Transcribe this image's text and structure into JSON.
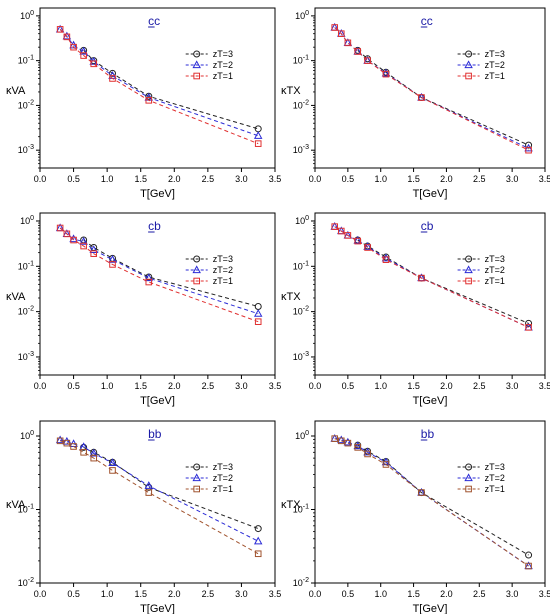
{
  "chart_data": [
    {
      "type": "line",
      "title": "cc",
      "xlabel": "T[GeV]",
      "ylabel": "κVA",
      "xlim": [
        0.0,
        3.5
      ],
      "ylim": [
        0.0004,
        1.5
      ],
      "yscale": "log",
      "xticks": [
        "0.0",
        "0.5",
        "1.0",
        "1.5",
        "2.0",
        "2.5",
        "3.0",
        "3.5"
      ],
      "yticks": [
        {
          "base": "10",
          "exp": "0"
        },
        {
          "base": "10",
          "exp": "-1"
        },
        {
          "base": "10",
          "exp": "-2"
        },
        {
          "base": "10",
          "exp": "-3"
        }
      ],
      "legend_position": "top-right",
      "series": [
        {
          "name": "zT=3",
          "color": "#222222",
          "marker": "circle",
          "x": [
            0.65,
            0.8,
            1.08,
            1.62,
            3.25
          ],
          "y": [
            0.17,
            0.1,
            0.052,
            0.016,
            0.003
          ]
        },
        {
          "name": "zT=2",
          "color": "#2b2bd6",
          "marker": "triangle",
          "x": [
            0.3,
            0.4,
            0.5,
            0.65,
            0.8,
            1.08,
            1.62,
            3.25
          ],
          "y": [
            0.5,
            0.35,
            0.22,
            0.16,
            0.095,
            0.046,
            0.015,
            0.0021
          ]
        },
        {
          "name": "zT=1",
          "color": "#e03030",
          "marker": "square",
          "x": [
            0.3,
            0.4,
            0.5,
            0.65,
            0.8,
            1.08,
            1.62,
            3.25
          ],
          "y": [
            0.5,
            0.34,
            0.2,
            0.13,
            0.085,
            0.04,
            0.013,
            0.0014
          ]
        }
      ]
    },
    {
      "type": "line",
      "title": "cc",
      "xlabel": "T[GeV]",
      "ylabel": "κTX",
      "xlim": [
        0.0,
        3.5
      ],
      "ylim": [
        0.0004,
        1.5
      ],
      "yscale": "log",
      "xticks": [
        "0.0",
        "0.5",
        "1.0",
        "1.5",
        "2.0",
        "2.5",
        "3.0",
        "3.5"
      ],
      "yticks": [
        {
          "base": "10",
          "exp": "0"
        },
        {
          "base": "10",
          "exp": "-1"
        },
        {
          "base": "10",
          "exp": "-2"
        },
        {
          "base": "10",
          "exp": "-3"
        }
      ],
      "legend_position": "top-right",
      "series": [
        {
          "name": "zT=3",
          "color": "#222222",
          "marker": "circle",
          "x": [
            0.65,
            0.8,
            1.08,
            1.62,
            3.25
          ],
          "y": [
            0.17,
            0.11,
            0.055,
            0.015,
            0.0013
          ]
        },
        {
          "name": "zT=2",
          "color": "#2b2bd6",
          "marker": "triangle",
          "x": [
            0.3,
            0.4,
            0.5,
            0.65,
            0.8,
            1.08,
            1.62,
            3.25
          ],
          "y": [
            0.55,
            0.4,
            0.25,
            0.16,
            0.1,
            0.052,
            0.015,
            0.0011
          ]
        },
        {
          "name": "zT=1",
          "color": "#e03030",
          "marker": "square",
          "x": [
            0.3,
            0.4,
            0.5,
            0.65,
            0.8,
            1.08,
            1.62,
            3.25
          ],
          "y": [
            0.55,
            0.4,
            0.25,
            0.16,
            0.1,
            0.05,
            0.015,
            0.001
          ]
        }
      ]
    },
    {
      "type": "line",
      "title": "cb",
      "xlabel": "T[GeV]",
      "ylabel": "κVA",
      "xlim": [
        0.0,
        3.5
      ],
      "ylim": [
        0.0004,
        1.5
      ],
      "yscale": "log",
      "xticks": [
        "0.0",
        "0.5",
        "1.0",
        "1.5",
        "2.0",
        "2.5",
        "3.0",
        "3.5"
      ],
      "yticks": [
        {
          "base": "10",
          "exp": "0"
        },
        {
          "base": "10",
          "exp": "-1"
        },
        {
          "base": "10",
          "exp": "-2"
        },
        {
          "base": "10",
          "exp": "-3"
        }
      ],
      "legend_position": "top-right",
      "series": [
        {
          "name": "zT=3",
          "color": "#222222",
          "marker": "circle",
          "x": [
            0.65,
            0.8,
            1.08,
            1.62,
            3.25
          ],
          "y": [
            0.38,
            0.26,
            0.15,
            0.058,
            0.013
          ]
        },
        {
          "name": "zT=2",
          "color": "#2b2bd6",
          "marker": "triangle",
          "x": [
            0.3,
            0.4,
            0.5,
            0.65,
            0.8,
            1.08,
            1.62,
            3.25
          ],
          "y": [
            0.7,
            0.52,
            0.4,
            0.35,
            0.23,
            0.14,
            0.055,
            0.009
          ]
        },
        {
          "name": "zT=1",
          "color": "#e03030",
          "marker": "square",
          "x": [
            0.3,
            0.4,
            0.5,
            0.65,
            0.8,
            1.08,
            1.62,
            3.25
          ],
          "y": [
            0.7,
            0.52,
            0.38,
            0.28,
            0.19,
            0.11,
            0.045,
            0.006
          ]
        }
      ]
    },
    {
      "type": "line",
      "title": "cb",
      "xlabel": "T[GeV]",
      "ylabel": "κTX",
      "xlim": [
        0.0,
        3.5
      ],
      "ylim": [
        0.0004,
        1.5
      ],
      "yscale": "log",
      "xticks": [
        "0.0",
        "0.5",
        "1.0",
        "1.5",
        "2.0",
        "2.5",
        "3.0",
        "3.5"
      ],
      "yticks": [
        {
          "base": "10",
          "exp": "0"
        },
        {
          "base": "10",
          "exp": "-1"
        },
        {
          "base": "10",
          "exp": "-2"
        },
        {
          "base": "10",
          "exp": "-3"
        }
      ],
      "legend_position": "top-right",
      "series": [
        {
          "name": "zT=3",
          "color": "#222222",
          "marker": "circle",
          "x": [
            0.65,
            0.8,
            1.08,
            1.62,
            3.25
          ],
          "y": [
            0.38,
            0.28,
            0.16,
            0.055,
            0.0055
          ]
        },
        {
          "name": "zT=2",
          "color": "#2b2bd6",
          "marker": "triangle",
          "x": [
            0.3,
            0.4,
            0.5,
            0.65,
            0.8,
            1.08,
            1.62,
            3.25
          ],
          "y": [
            0.75,
            0.6,
            0.48,
            0.37,
            0.27,
            0.15,
            0.055,
            0.0045
          ]
        },
        {
          "name": "zT=1",
          "color": "#e03030",
          "marker": "square",
          "x": [
            0.3,
            0.4,
            0.5,
            0.65,
            0.8,
            1.08,
            1.62,
            3.25
          ],
          "y": [
            0.75,
            0.6,
            0.48,
            0.36,
            0.26,
            0.14,
            0.055,
            0.0045
          ]
        }
      ]
    },
    {
      "type": "line",
      "title": "bb",
      "xlabel": "T[GeV]",
      "ylabel": "κVA",
      "xlim": [
        0.0,
        3.5
      ],
      "ylim": [
        0.01,
        1.6
      ],
      "yscale": "log",
      "xticks": [
        "0.0",
        "0.5",
        "1.0",
        "1.5",
        "2.0",
        "2.5",
        "3.0",
        "3.5"
      ],
      "yticks": [
        {
          "base": "10",
          "exp": "0"
        },
        {
          "base": "10",
          "exp": "-1"
        },
        {
          "base": "10",
          "exp": "-2"
        }
      ],
      "legend_position": "top-right",
      "series": [
        {
          "name": "zT=3",
          "color": "#222222",
          "marker": "circle",
          "x": [
            0.65,
            0.8,
            1.08,
            1.62,
            3.25
          ],
          "y": [
            0.7,
            0.6,
            0.44,
            0.2,
            0.055
          ]
        },
        {
          "name": "zT=2",
          "color": "#2b2bd6",
          "marker": "triangle",
          "x": [
            0.3,
            0.4,
            0.5,
            0.65,
            0.8,
            1.08,
            1.62,
            3.25
          ],
          "y": [
            0.88,
            0.84,
            0.78,
            0.71,
            0.58,
            0.43,
            0.21,
            0.037
          ]
        },
        {
          "name": "zT=1",
          "color": "#a0522d",
          "marker": "square",
          "x": [
            0.3,
            0.4,
            0.5,
            0.65,
            0.8,
            1.08,
            1.62,
            3.25
          ],
          "y": [
            0.86,
            0.8,
            0.72,
            0.6,
            0.5,
            0.34,
            0.17,
            0.025
          ]
        }
      ]
    },
    {
      "type": "line",
      "title": "bb",
      "xlabel": "T[GeV]",
      "ylabel": "κTX",
      "xlim": [
        0.0,
        3.5
      ],
      "ylim": [
        0.01,
        1.6
      ],
      "yscale": "log",
      "xticks": [
        "0.0",
        "0.5",
        "1.0",
        "1.5",
        "2.0",
        "2.5",
        "3.0",
        "3.5"
      ],
      "yticks": [
        {
          "base": "10",
          "exp": "0"
        },
        {
          "base": "10",
          "exp": "-1"
        },
        {
          "base": "10",
          "exp": "-2"
        }
      ],
      "legend_position": "top-right",
      "series": [
        {
          "name": "zT=3",
          "color": "#222222",
          "marker": "circle",
          "x": [
            0.65,
            0.8,
            1.08,
            1.62,
            3.25
          ],
          "y": [
            0.75,
            0.62,
            0.45,
            0.17,
            0.024
          ]
        },
        {
          "name": "zT=2",
          "color": "#2b2bd6",
          "marker": "triangle",
          "x": [
            0.3,
            0.4,
            0.5,
            0.65,
            0.8,
            1.08,
            1.62,
            3.25
          ],
          "y": [
            0.92,
            0.88,
            0.82,
            0.73,
            0.6,
            0.44,
            0.17,
            0.017
          ]
        },
        {
          "name": "zT=1",
          "color": "#a0522d",
          "marker": "square",
          "x": [
            0.3,
            0.4,
            0.5,
            0.65,
            0.8,
            1.08,
            1.62,
            3.25
          ],
          "y": [
            0.92,
            0.86,
            0.8,
            0.7,
            0.57,
            0.41,
            0.17,
            0.017
          ]
        }
      ]
    }
  ]
}
